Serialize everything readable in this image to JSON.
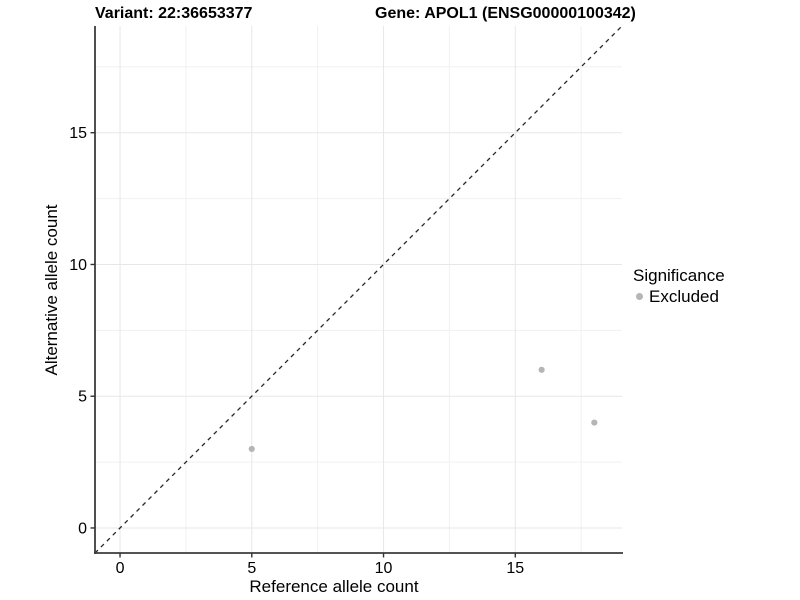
{
  "chart_data": {
    "type": "scatter",
    "title_left": "Variant: 22:36653377",
    "title_right": "Gene: APOL1 (ENSG00000100342)",
    "xlabel": "Reference allele count",
    "ylabel": "Alternative allele count",
    "xlim": [
      -0.95,
      19.05
    ],
    "ylim": [
      -0.95,
      19.05
    ],
    "x_ticks": [
      0,
      5,
      10,
      15
    ],
    "y_ticks": [
      0,
      5,
      10,
      15
    ],
    "x_minor_gridlines": [
      2.5,
      7.5,
      12.5,
      17.5
    ],
    "y_minor_gridlines": [
      2.5,
      7.5,
      12.5,
      17.5
    ],
    "grid": "major and minor, light grey on white panel",
    "identity_line": {
      "style": "dashed",
      "slope": 1,
      "intercept": 0
    },
    "series": [
      {
        "name": "Excluded",
        "color": "#b5b5b5",
        "points": [
          [
            5,
            3
          ],
          [
            16,
            6
          ],
          [
            18,
            4
          ]
        ]
      }
    ],
    "legend": {
      "title": "Significance",
      "position": "right",
      "items": [
        {
          "label": "Excluded",
          "color": "#b5b5b5"
        }
      ]
    }
  },
  "colors": {
    "background": "#ffffff",
    "grid_major": "#e7e7e7",
    "grid_minor": "#f1f1f1",
    "axis_line": "#3c3c3c",
    "tick_mark": "#333333",
    "text": "#000000",
    "identity_line": "#262626",
    "point": "#b5b5b5"
  }
}
